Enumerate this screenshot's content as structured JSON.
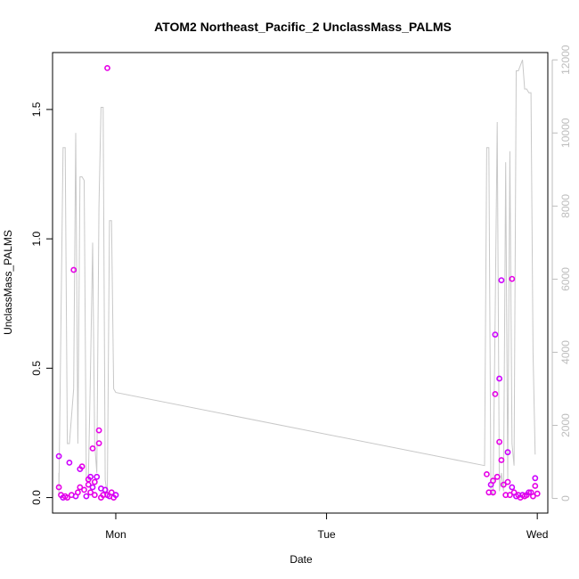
{
  "chart_data": {
    "type": "scatter",
    "title": "ATOM2 Northeast_Pacific_2 UnclassMass_PALMS",
    "xlabel": "Date",
    "ylabel": "UnclassMass_PALMS",
    "x_tick_labels": [
      "Mon",
      "Tue",
      "Wed"
    ],
    "x_tick_positions": [
      1.0,
      2.0,
      3.0
    ],
    "xlim": [
      0.7,
      3.05
    ],
    "ylim": [
      -0.06,
      1.72
    ],
    "y_ticks": [
      0.0,
      0.5,
      1.0,
      1.5
    ],
    "y_tick_labels": [
      "0.0",
      "0.5",
      "1.0",
      "1.5"
    ],
    "y2lim": [
      -400,
      12200
    ],
    "y2_ticks": [
      0,
      2000,
      4000,
      6000,
      8000,
      10000,
      12000
    ],
    "y2_tick_labels": [
      "0",
      "2000",
      "4000",
      "6000",
      "8000",
      "10000",
      "12000"
    ],
    "colors": {
      "points_primary": "#e600e6",
      "points_secondary": "#cc00ff",
      "altitude_line": "#c8c8c8",
      "right_axis": "#bdbdbd"
    },
    "series": [
      {
        "kind": "points",
        "values": [
          [
            0.73,
            0.16
          ],
          [
            0.73,
            0.04
          ],
          [
            0.74,
            0.01
          ],
          [
            0.75,
            0.0
          ],
          [
            0.76,
            0.005
          ],
          [
            0.77,
            0.0
          ],
          [
            0.78,
            0.135
          ],
          [
            0.79,
            0.01
          ],
          [
            0.8,
            0.88
          ],
          [
            0.81,
            0.005
          ],
          [
            0.82,
            0.02
          ],
          [
            0.83,
            0.04
          ],
          [
            0.83,
            0.11
          ],
          [
            0.84,
            0.12
          ],
          [
            0.85,
            0.03
          ],
          [
            0.86,
            0.005
          ],
          [
            0.87,
            0.05
          ],
          [
            0.87,
            0.07
          ],
          [
            0.88,
            0.08
          ],
          [
            0.88,
            0.02
          ],
          [
            0.89,
            0.19
          ],
          [
            0.89,
            0.04
          ],
          [
            0.9,
            0.06
          ],
          [
            0.9,
            0.01
          ],
          [
            0.91,
            0.08
          ],
          [
            0.92,
            0.26
          ],
          [
            0.92,
            0.21
          ],
          [
            0.93,
            0.035
          ],
          [
            0.93,
            0.0
          ],
          [
            0.94,
            0.01
          ],
          [
            0.95,
            0.03
          ],
          [
            0.96,
            1.66
          ],
          [
            0.96,
            0.01
          ],
          [
            0.97,
            0.005
          ],
          [
            0.98,
            0.02
          ],
          [
            0.99,
            0.0
          ],
          [
            1.0,
            0.01
          ],
          [
            2.76,
            0.09
          ],
          [
            2.77,
            0.02
          ],
          [
            2.78,
            0.05
          ],
          [
            2.79,
            0.065
          ],
          [
            2.79,
            0.02
          ],
          [
            2.8,
            0.63
          ],
          [
            2.8,
            0.4
          ],
          [
            2.81,
            0.08
          ],
          [
            2.82,
            0.46
          ],
          [
            2.82,
            0.215
          ],
          [
            2.83,
            0.145
          ],
          [
            2.83,
            0.84
          ],
          [
            2.84,
            0.05
          ],
          [
            2.85,
            0.01
          ],
          [
            2.86,
            0.175
          ],
          [
            2.86,
            0.06
          ],
          [
            2.87,
            0.01
          ],
          [
            2.88,
            0.04
          ],
          [
            2.88,
            0.845
          ],
          [
            2.89,
            0.02
          ],
          [
            2.9,
            0.005
          ],
          [
            2.91,
            0.01
          ],
          [
            2.92,
            0.0
          ],
          [
            2.93,
            0.01
          ],
          [
            2.94,
            0.005
          ],
          [
            2.95,
            0.01
          ],
          [
            2.96,
            0.02
          ],
          [
            2.97,
            0.02
          ],
          [
            2.98,
            0.005
          ],
          [
            2.99,
            0.075
          ],
          [
            2.99,
            0.045
          ],
          [
            3.0,
            0.015
          ]
        ]
      },
      {
        "kind": "line",
        "axis": "right",
        "values": [
          [
            0.73,
            700
          ],
          [
            0.73,
            100
          ],
          [
            0.75,
            9600
          ],
          [
            0.76,
            9600
          ],
          [
            0.77,
            1500
          ],
          [
            0.78,
            1500
          ],
          [
            0.8,
            3000
          ],
          [
            0.81,
            10000
          ],
          [
            0.82,
            1500
          ],
          [
            0.83,
            8800
          ],
          [
            0.84,
            8800
          ],
          [
            0.85,
            8700
          ],
          [
            0.86,
            500
          ],
          [
            0.87,
            500
          ],
          [
            0.88,
            3500
          ],
          [
            0.89,
            7000
          ],
          [
            0.9,
            1500
          ],
          [
            0.91,
            700
          ],
          [
            0.92,
            8000
          ],
          [
            0.93,
            10700
          ],
          [
            0.94,
            10700
          ],
          [
            0.95,
            500
          ],
          [
            0.96,
            100
          ],
          [
            0.97,
            7600
          ],
          [
            0.98,
            7600
          ],
          [
            0.99,
            3000
          ],
          [
            1.0,
            2900
          ],
          [
            2.75,
            900
          ],
          [
            2.76,
            9600
          ],
          [
            2.77,
            9600
          ],
          [
            2.78,
            200
          ],
          [
            2.79,
            100
          ],
          [
            2.8,
            5000
          ],
          [
            2.81,
            10300
          ],
          [
            2.82,
            200
          ],
          [
            2.83,
            700
          ],
          [
            2.84,
            200
          ],
          [
            2.85,
            9200
          ],
          [
            2.86,
            500
          ],
          [
            2.87,
            9500
          ],
          [
            2.88,
            1500
          ],
          [
            2.89,
            900
          ],
          [
            2.9,
            11700
          ],
          [
            2.91,
            11700
          ],
          [
            2.93,
            12000
          ],
          [
            2.94,
            11200
          ],
          [
            2.95,
            11200
          ],
          [
            2.96,
            11100
          ],
          [
            2.97,
            11100
          ],
          [
            2.98,
            4000
          ],
          [
            2.99,
            1200
          ]
        ]
      }
    ]
  }
}
